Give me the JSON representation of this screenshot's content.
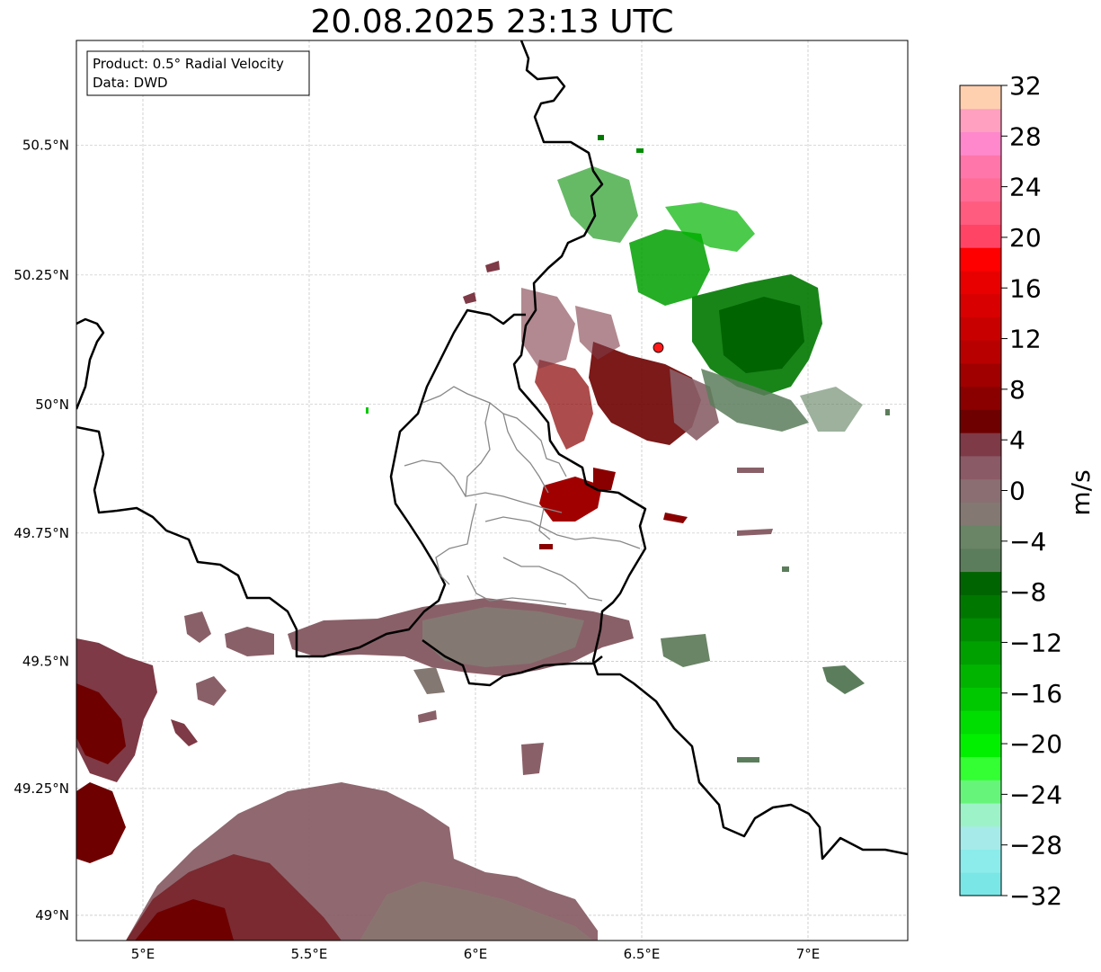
{
  "title": "20.08.2025 23:13 UTC",
  "info_box": {
    "product_line": "Product: 0.5° Radial Velocity",
    "data_line": "Data: DWD"
  },
  "map": {
    "lon_range": [
      4.8,
      7.3
    ],
    "lat_range": [
      48.95,
      50.7
    ],
    "lat_ticks": [
      {
        "value": 50.5,
        "label": "50.5°N"
      },
      {
        "value": 50.25,
        "label": "50.25°N"
      },
      {
        "value": 50.0,
        "label": "50°N"
      },
      {
        "value": 49.75,
        "label": "49.75°N"
      },
      {
        "value": 49.5,
        "label": "49.5°N"
      },
      {
        "value": 49.25,
        "label": "49.25°N"
      },
      {
        "value": 49.0,
        "label": "49°N"
      }
    ],
    "lon_ticks": [
      {
        "value": 5.0,
        "label": "5°E"
      },
      {
        "value": 5.5,
        "label": "5.5°E"
      },
      {
        "value": 6.0,
        "label": "6°E"
      },
      {
        "value": 6.5,
        "label": "6.5°E"
      },
      {
        "value": 7.0,
        "label": "7°E"
      }
    ],
    "gridlines": true,
    "radar_site": {
      "lon": 6.55,
      "lat": 50.11,
      "color": "#ff1a1a"
    }
  },
  "colorbar": {
    "unit": "m/s",
    "range": [
      -32,
      32
    ],
    "step": 4,
    "tick_labels": [
      "32",
      "28",
      "24",
      "20",
      "16",
      "12",
      "8",
      "4",
      "0",
      "−4",
      "−8",
      "−12",
      "−16",
      "−20",
      "−24",
      "−28",
      "−32"
    ],
    "colors_bottom_to_top": [
      "#7ae6e6",
      "#8cebeb",
      "#a6eaea",
      "#9ef2c8",
      "#66f57a",
      "#33ff33",
      "#00f000",
      "#00dd00",
      "#00c800",
      "#00b400",
      "#00a000",
      "#008c00",
      "#007800",
      "#006400",
      "#5c7d5c",
      "#6a8466",
      "#847872",
      "#8a6e72",
      "#8a5a66",
      "#7e3a46",
      "#6e0000",
      "#8a0000",
      "#a00000",
      "#b80000",
      "#c80000",
      "#d80000",
      "#e80000",
      "#ff0000",
      "#ff4466",
      "#ff5c80",
      "#ff6c96",
      "#ff76aa",
      "#ff88cc",
      "#ffa0c0",
      "#ffd0b0"
    ]
  }
}
